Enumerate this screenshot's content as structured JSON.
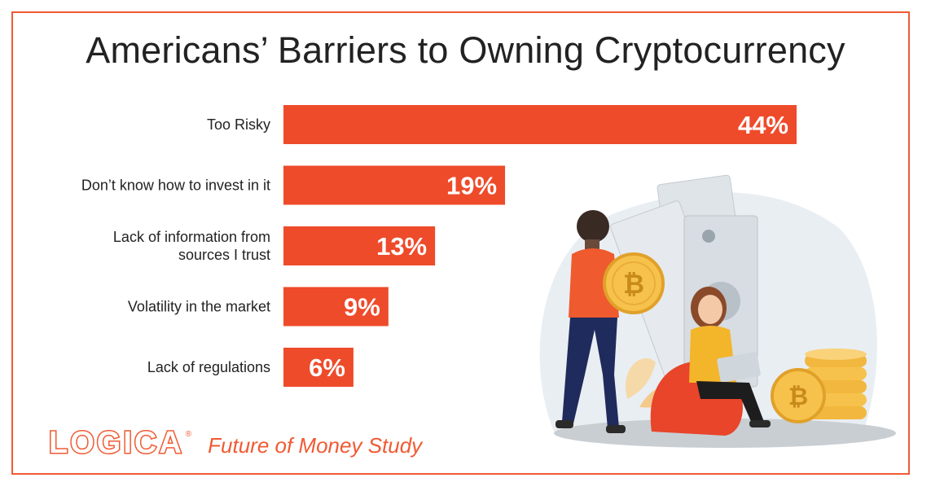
{
  "title": "Americans’ Barriers to Owning Cryptocurrency",
  "brand": {
    "logo": "LOGICA",
    "registered": "®",
    "study": "Future of Money Study"
  },
  "colors": {
    "accent": "#f05a33",
    "bar": "#ee4b2b",
    "text": "#222222"
  },
  "illustration": {
    "coin_symbol": "₿"
  },
  "chart_data": {
    "type": "bar",
    "orientation": "horizontal",
    "title": "Americans’ Barriers to Owning Cryptocurrency",
    "categories": [
      [
        "Too Risky"
      ],
      [
        "Don’t know how to invest in it"
      ],
      [
        "Lack of information from",
        "sources I trust"
      ],
      [
        "Volatility in the market"
      ],
      [
        "Lack of regulations"
      ]
    ],
    "values": [
      44,
      19,
      13,
      9,
      6
    ],
    "value_labels": [
      "44%",
      "19%",
      "13%",
      "9%",
      "6%"
    ],
    "unit": "%",
    "xlim": [
      0,
      44
    ],
    "grid": false,
    "legend": "none"
  }
}
